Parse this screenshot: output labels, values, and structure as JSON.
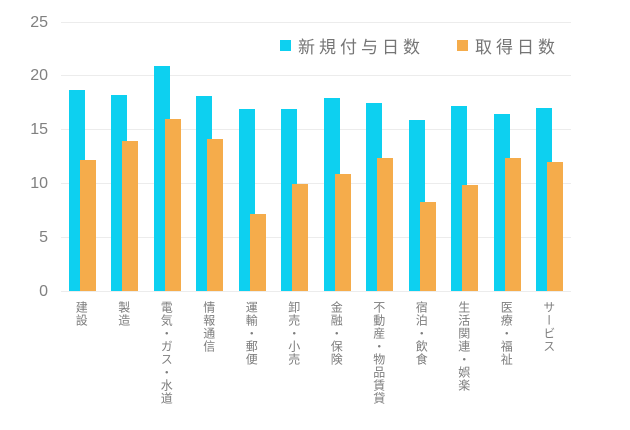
{
  "chart_data": {
    "type": "bar",
    "categories": [
      "建設",
      "製造",
      "電気・ガス・水道",
      "情報通信",
      "運輸・郵便",
      "卸売・小売",
      "金融・保険",
      "不動産・物品賃貸",
      "宿泊・飲食",
      "生活関連・娯楽",
      "医療・福祉",
      "サービス"
    ],
    "series": [
      {
        "name": "新規付与日数",
        "color": "#0dd0f0",
        "values": [
          18.7,
          18.3,
          21.0,
          18.2,
          17.0,
          17.0,
          18.0,
          17.5,
          15.9,
          17.2,
          16.5,
          17.1
        ]
      },
      {
        "name": "取得日数",
        "color": "#f5ac4b",
        "values": [
          12.2,
          14.0,
          16.0,
          14.2,
          7.2,
          10.0,
          10.9,
          12.4,
          8.3,
          9.9,
          12.4,
          12.0
        ]
      }
    ],
    "title": "",
    "xlabel": "",
    "ylabel": "",
    "ylim": [
      0,
      25
    ],
    "yticks": [
      0,
      5,
      10,
      15,
      20,
      25
    ],
    "grid": true,
    "legend_position": "top-center"
  }
}
